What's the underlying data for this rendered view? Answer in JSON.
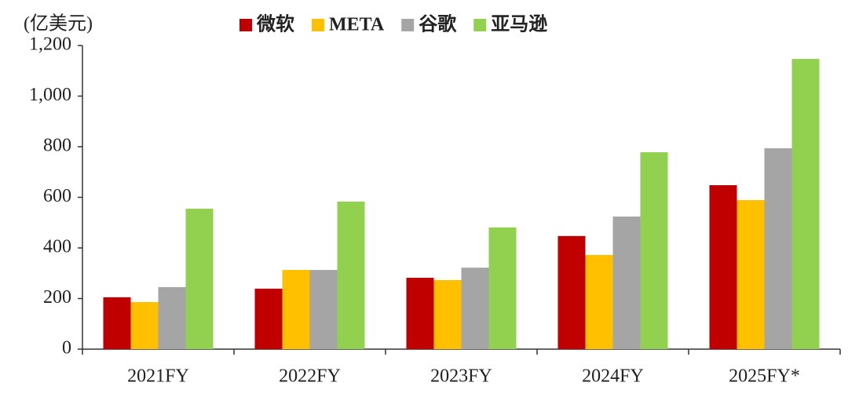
{
  "chart_data": {
    "type": "bar",
    "y_axis_label": "(亿美元)",
    "categories": [
      "2021FY",
      "2022FY",
      "2023FY",
      "2024FY",
      "2025FY*"
    ],
    "series": [
      {
        "name": "微软",
        "color": "#c00000",
        "values": [
          205,
          239,
          282,
          447,
          648
        ]
      },
      {
        "name": "META",
        "color": "#ffc000",
        "values": [
          186,
          313,
          273,
          372,
          589
        ]
      },
      {
        "name": "谷歌",
        "color": "#a5a5a5",
        "values": [
          245,
          313,
          322,
          524,
          794
        ]
      },
      {
        "name": "亚马逊",
        "color": "#92d050",
        "values": [
          555,
          583,
          481,
          778,
          1147
        ]
      }
    ],
    "ylim": [
      0,
      1200
    ],
    "yticks": [
      0,
      200,
      400,
      600,
      800,
      {
        "value": 1000,
        "label": "1,000"
      },
      {
        "value": 1200,
        "label": "1,200"
      }
    ],
    "grid": false,
    "legend": "top"
  }
}
